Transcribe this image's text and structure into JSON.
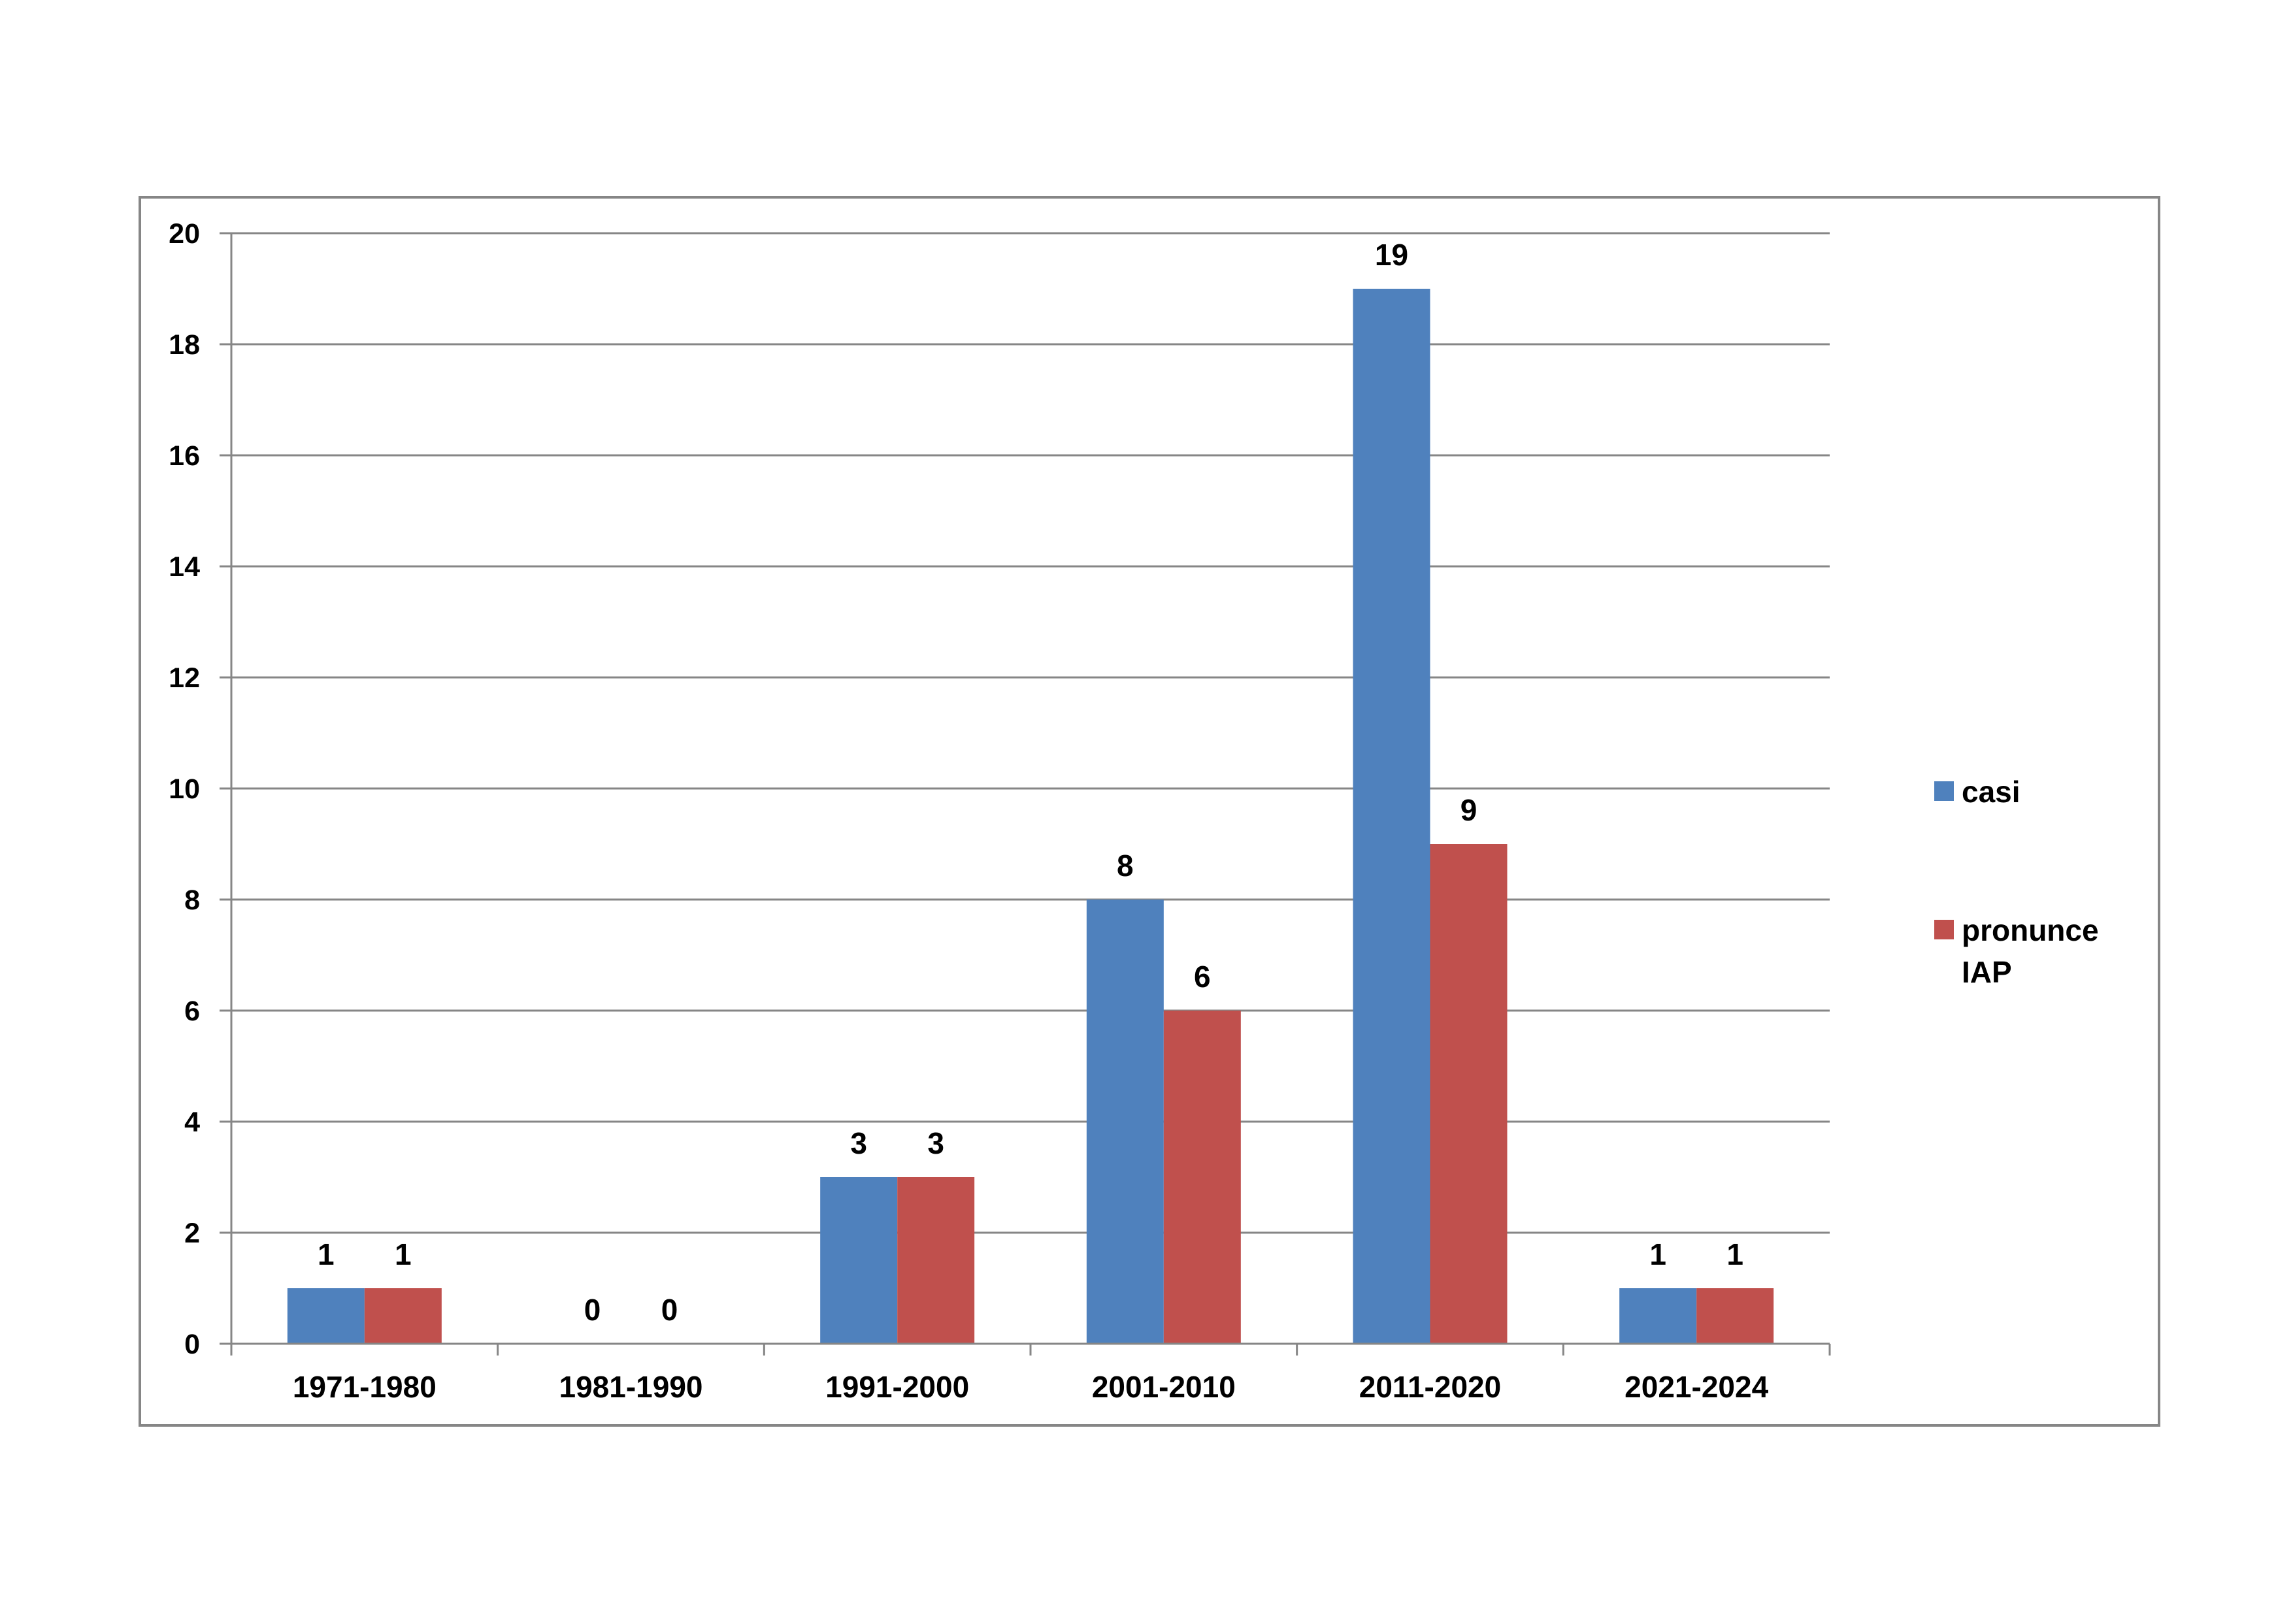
{
  "chart_data": {
    "type": "bar",
    "categories": [
      "1971-1980",
      "1981-1990",
      "1991-2000",
      "2001-2010",
      "2011-2020",
      "2021-2024"
    ],
    "series": [
      {
        "name": "casi",
        "values": [
          1,
          0,
          3,
          8,
          19,
          1
        ],
        "color": "#4f81bd"
      },
      {
        "name": "pronunce IAP",
        "name_lines": [
          "pronunce",
          "IAP"
        ],
        "values": [
          1,
          0,
          3,
          6,
          9,
          1
        ],
        "color": "#c0504d"
      }
    ],
    "yticks": [
      0,
      2,
      4,
      6,
      8,
      10,
      12,
      14,
      16,
      18,
      20
    ],
    "ylim": [
      0,
      20
    ],
    "title": "",
    "xlabel": "",
    "ylabel": "",
    "grid": true,
    "data_labels": true,
    "legend_position": "right",
    "colors": {
      "gridline": "#868686",
      "frame": "#868686",
      "axis": "#868686"
    }
  }
}
